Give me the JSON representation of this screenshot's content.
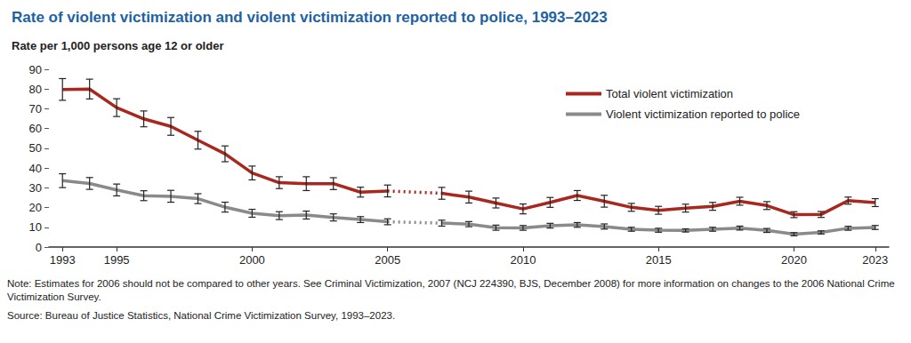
{
  "chart_data": {
    "type": "line",
    "title": "Rate of violent victimization and violent victimization reported to police, 1993–2023",
    "y_label": "Rate per 1,000 persons age 12 or older",
    "note": "Note: Estimates for 2006 should not be compared to other years. See Criminal Victimization, 2007 (NCJ 224390, BJS, December 2008) for more information on changes to the 2006 National Crime Victimization Survey.",
    "source": "Source: Bureau of Justice Statistics, National Crime Victimization Survey, 1993–2023.",
    "x": [
      1993,
      1994,
      1995,
      1996,
      1997,
      1998,
      1999,
      2000,
      2001,
      2002,
      2003,
      2004,
      2005,
      2006,
      2007,
      2008,
      2009,
      2010,
      2011,
      2012,
      2013,
      2014,
      2015,
      2016,
      2017,
      2018,
      2019,
      2020,
      2021,
      2022,
      2023
    ],
    "series": [
      {
        "name": "Total violent victimization",
        "color": "#a8271e",
        "values": [
          79.8,
          80.0,
          70.6,
          64.9,
          61.1,
          54.1,
          47.2,
          37.5,
          32.6,
          32.1,
          32.1,
          27.8,
          28.4,
          null,
          27.2,
          25.3,
          22.3,
          19.3,
          22.6,
          26.1,
          23.2,
          20.1,
          18.6,
          19.7,
          20.6,
          23.2,
          21.0,
          16.4,
          16.5,
          23.5,
          22.5
        ],
        "error": [
          5.5,
          5.0,
          4.5,
          4.0,
          4.5,
          4.5,
          4.0,
          3.5,
          3.0,
          3.5,
          3.0,
          2.5,
          3.0,
          null,
          3.0,
          3.0,
          2.5,
          2.5,
          2.5,
          2.5,
          3.0,
          2.0,
          2.0,
          2.0,
          2.0,
          2.0,
          2.0,
          1.5,
          1.5,
          1.8,
          2.0
        ]
      },
      {
        "name": "Violent victimization reported to police",
        "color": "#8a8a8a",
        "values": [
          33.6,
          32.2,
          28.9,
          26.0,
          25.7,
          24.5,
          20.2,
          17.1,
          15.9,
          16.2,
          15.0,
          13.9,
          12.8,
          null,
          12.1,
          11.6,
          9.8,
          9.7,
          10.8,
          11.2,
          10.4,
          9.0,
          8.5,
          8.4,
          9.0,
          9.6,
          8.4,
          6.5,
          7.4,
          9.5,
          9.9
        ],
        "error": [
          3.5,
          3.0,
          3.0,
          2.5,
          3.0,
          2.5,
          2.5,
          2.0,
          2.0,
          2.0,
          1.8,
          1.5,
          1.5,
          null,
          1.5,
          1.3,
          1.3,
          1.2,
          1.2,
          1.2,
          1.3,
          1.0,
          1.0,
          0.8,
          1.0,
          1.0,
          1.0,
          0.8,
          0.8,
          1.0,
          1.0
        ]
      }
    ],
    "xlim": [
      1992.5,
      2023.5
    ],
    "xticks": [
      1993,
      1995,
      2000,
      2005,
      2010,
      2015,
      2020,
      2023
    ],
    "ylim": [
      0,
      90
    ],
    "yticks": [
      0,
      10,
      20,
      30,
      40,
      50,
      60,
      70,
      80,
      90
    ],
    "grid": false,
    "legend": "top-right"
  }
}
